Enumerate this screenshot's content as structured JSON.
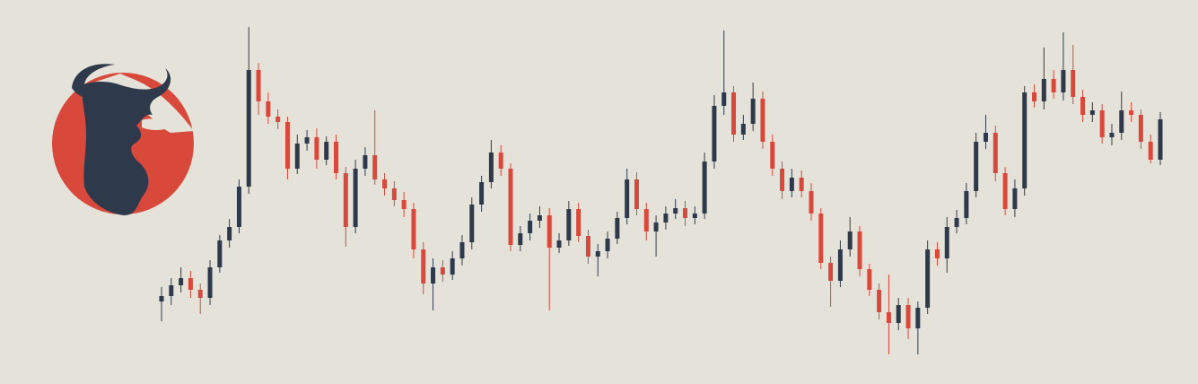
{
  "chart_data": {
    "type": "candlestick",
    "up_color": "#2e3a4c",
    "down_color": "#d8493c",
    "background": "#e5e3d9",
    "ylim": [
      0,
      428
    ],
    "open": [
      92,
      98,
      110,
      118,
      105,
      96,
      130,
      160,
      175,
      220,
      350,
      315,
      298,
      292,
      240,
      268,
      275,
      250,
      270,
      235,
      175,
      240,
      255,
      228,
      218,
      205,
      195,
      150,
      112,
      130,
      122,
      140,
      158,
      200,
      225,
      258,
      240,
      155,
      168,
      182,
      188,
      152,
      160,
      195,
      165,
      142,
      148,
      162,
      185,
      228,
      195,
      170,
      180,
      190,
      196,
      185,
      190,
      248,
      310,
      325,
      278,
      290,
      318,
      270,
      240,
      215,
      230,
      215,
      190,
      135,
      115,
      150,
      170,
      128,
      105,
      80,
      68,
      88,
      62,
      85,
      150,
      140,
      175,
      185,
      215,
      270,
      280,
      235,
      195,
      218,
      325,
      315,
      340,
      325,
      350,
      320,
      300,
      305,
      275,
      280,
      305,
      300,
      270,
      250
    ],
    "high": [
      108,
      118,
      130,
      126,
      112,
      138,
      166,
      184,
      228,
      398,
      358,
      325,
      306,
      298,
      278,
      283,
      285,
      276,
      278,
      242,
      250,
      264,
      305,
      235,
      226,
      214,
      202,
      158,
      140,
      138,
      148,
      166,
      208,
      232,
      272,
      266,
      246,
      176,
      190,
      198,
      196,
      168,
      204,
      202,
      172,
      156,
      170,
      192,
      240,
      236,
      202,
      188,
      198,
      206,
      204,
      198,
      258,
      322,
      394,
      332,
      300,
      336,
      326,
      278,
      248,
      240,
      238,
      224,
      196,
      142,
      160,
      186,
      176,
      134,
      112,
      122,
      96,
      96,
      92,
      160,
      158,
      186,
      194,
      224,
      280,
      300,
      288,
      242,
      228,
      332,
      334,
      375,
      350,
      392,
      378,
      328,
      314,
      312,
      290,
      326,
      314,
      306,
      278,
      303
    ],
    "low": [
      70,
      88,
      102,
      96,
      78,
      88,
      124,
      152,
      168,
      212,
      300,
      290,
      284,
      228,
      234,
      260,
      240,
      244,
      228,
      153,
      168,
      232,
      222,
      210,
      198,
      186,
      140,
      100,
      82,
      114,
      116,
      132,
      150,
      192,
      218,
      232,
      148,
      148,
      160,
      174,
      82,
      146,
      154,
      158,
      134,
      120,
      140,
      156,
      178,
      188,
      160,
      142,
      172,
      184,
      176,
      178,
      184,
      240,
      300,
      270,
      272,
      282,
      262,
      232,
      206,
      208,
      208,
      182,
      128,
      86,
      108,
      142,
      120,
      98,
      72,
      33,
      60,
      50,
      33,
      78,
      132,
      124,
      168,
      178,
      208,
      262,
      226,
      188,
      186,
      210,
      308,
      306,
      318,
      316,
      312,
      292,
      292,
      268,
      266,
      272,
      292,
      262,
      246,
      244
    ],
    "close": [
      98,
      110,
      118,
      105,
      96,
      130,
      160,
      175,
      220,
      350,
      315,
      298,
      292,
      240,
      268,
      275,
      250,
      270,
      235,
      175,
      240,
      255,
      228,
      218,
      205,
      195,
      150,
      112,
      130,
      122,
      140,
      158,
      200,
      225,
      258,
      240,
      155,
      168,
      182,
      188,
      152,
      160,
      195,
      165,
      142,
      148,
      162,
      185,
      228,
      195,
      170,
      180,
      190,
      196,
      185,
      190,
      248,
      310,
      325,
      278,
      290,
      318,
      270,
      240,
      215,
      230,
      215,
      190,
      135,
      115,
      150,
      170,
      128,
      105,
      80,
      68,
      88,
      62,
      85,
      150,
      140,
      175,
      185,
      215,
      270,
      280,
      235,
      195,
      218,
      325,
      315,
      340,
      325,
      350,
      320,
      300,
      305,
      275,
      280,
      305,
      300,
      270,
      250,
      295
    ]
  }
}
